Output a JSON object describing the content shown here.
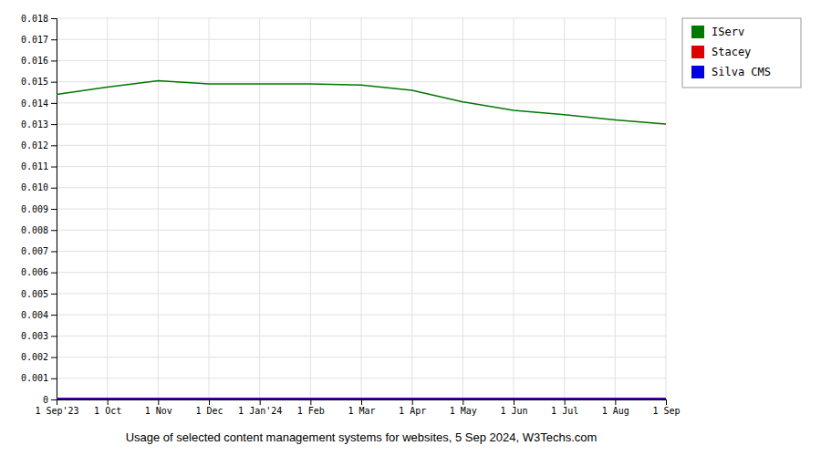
{
  "chart_data": {
    "type": "line",
    "x_label": "Usage of selected content management systems for websites, 5 Sep 2024, W3Techs.com",
    "categories": [
      "1 Sep'23",
      "1 Oct",
      "1 Nov",
      "1 Dec",
      "1 Jan'24",
      "1 Feb",
      "1 Mar",
      "1 Apr",
      "1 May",
      "1 Jun",
      "1 Jul",
      "1 Aug",
      "1 Sep"
    ],
    "series": [
      {
        "name": "IServ",
        "color": "#007700",
        "values": [
          0.0144,
          0.01475,
          0.01505,
          0.0149,
          0.0149,
          0.0149,
          0.01485,
          0.0146,
          0.01405,
          0.01365,
          0.01345,
          0.0132,
          0.013
        ]
      },
      {
        "name": "Stacey",
        "color": "#dd0000",
        "values": [
          5e-05,
          5e-05,
          5e-05,
          5e-05,
          5e-05,
          5e-05,
          5e-05,
          5e-05,
          5e-05,
          5e-05,
          5e-05,
          5e-05,
          5e-05
        ]
      },
      {
        "name": "Silva CMS",
        "color": "#0000dd",
        "values": [
          3e-05,
          3e-05,
          3e-05,
          3e-05,
          3e-05,
          3e-05,
          3e-05,
          3e-05,
          3e-05,
          3e-05,
          3e-05,
          3e-05,
          3e-05
        ]
      }
    ],
    "ylim": [
      0,
      0.018
    ],
    "yticks": [
      0,
      0.001,
      0.002,
      0.003,
      0.004,
      0.005,
      0.006,
      0.007,
      0.008,
      0.009,
      {
        "value": 0.01,
        "label": "0.010"
      },
      0.011,
      0.012,
      0.013,
      0.014,
      0.015,
      0.016,
      0.017,
      0.018
    ],
    "grid": true,
    "legend": "upper right"
  }
}
